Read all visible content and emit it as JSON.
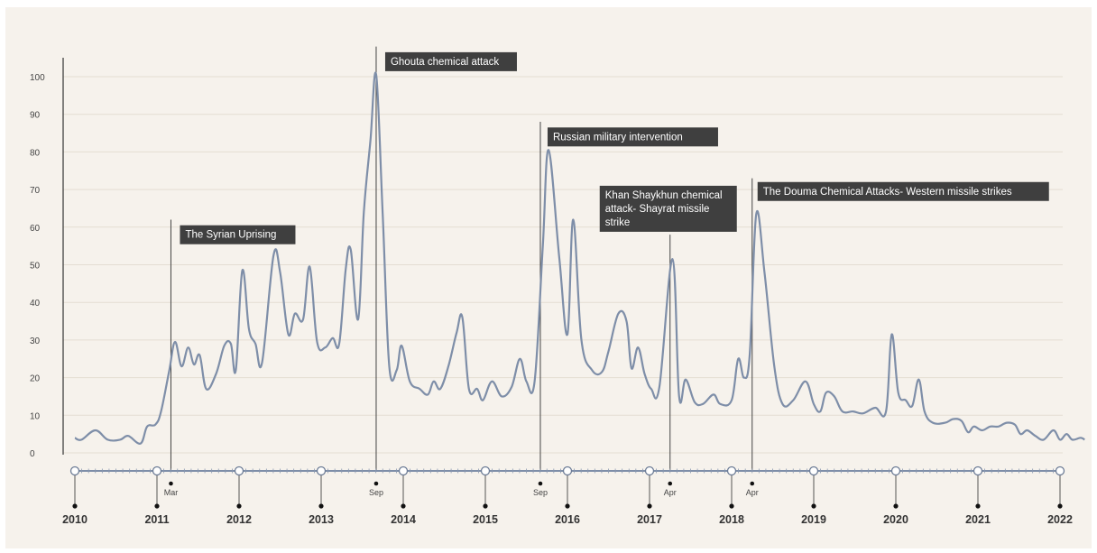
{
  "chart_data": {
    "type": "line",
    "title": "",
    "xlabel": "",
    "ylabel": "",
    "ylim": [
      0,
      100
    ],
    "yticks": [
      "0",
      "10",
      "20",
      "30",
      "40",
      "50",
      "60",
      "70",
      "80",
      "90",
      "100"
    ],
    "grid": true,
    "line_color": "#7e8ea8",
    "x_start_year": 2010,
    "x_end_year": 2022,
    "year_labels": [
      "2010",
      "2011",
      "2012",
      "2013",
      "2014",
      "2015",
      "2016",
      "2017",
      "2018",
      "2019",
      "2020",
      "2021",
      "2022"
    ],
    "series": [
      {
        "points": [
          [
            2010.0,
            4
          ],
          [
            2010.08,
            3.5
          ],
          [
            2010.25,
            6
          ],
          [
            2010.4,
            3.5
          ],
          [
            2010.55,
            3.5
          ],
          [
            2010.65,
            4.5
          ],
          [
            2010.8,
            2.5
          ],
          [
            2010.88,
            7
          ],
          [
            2010.98,
            7.5
          ],
          [
            2011.05,
            11
          ],
          [
            2011.15,
            22
          ],
          [
            2011.22,
            29.5
          ],
          [
            2011.3,
            23
          ],
          [
            2011.38,
            28
          ],
          [
            2011.45,
            23.5
          ],
          [
            2011.52,
            26
          ],
          [
            2011.6,
            17
          ],
          [
            2011.72,
            21
          ],
          [
            2011.82,
            28.5
          ],
          [
            2011.9,
            29
          ],
          [
            2011.96,
            22
          ],
          [
            2012.04,
            48.5
          ],
          [
            2012.12,
            33
          ],
          [
            2012.2,
            29
          ],
          [
            2012.28,
            24
          ],
          [
            2012.42,
            52.5
          ],
          [
            2012.5,
            48
          ],
          [
            2012.6,
            31.5
          ],
          [
            2012.68,
            37
          ],
          [
            2012.78,
            35.5
          ],
          [
            2012.86,
            49.5
          ],
          [
            2012.95,
            29.5
          ],
          [
            2013.05,
            28
          ],
          [
            2013.14,
            30.5
          ],
          [
            2013.22,
            29
          ],
          [
            2013.3,
            49
          ],
          [
            2013.36,
            54
          ],
          [
            2013.45,
            35.5
          ],
          [
            2013.52,
            64
          ],
          [
            2013.6,
            83
          ],
          [
            2013.67,
            100.5
          ],
          [
            2013.75,
            63
          ],
          [
            2013.83,
            23
          ],
          [
            2013.92,
            22
          ],
          [
            2013.98,
            28.5
          ],
          [
            2014.08,
            19
          ],
          [
            2014.2,
            17
          ],
          [
            2014.3,
            15.5
          ],
          [
            2014.37,
            19
          ],
          [
            2014.45,
            17
          ],
          [
            2014.55,
            23
          ],
          [
            2014.65,
            32
          ],
          [
            2014.72,
            36
          ],
          [
            2014.8,
            17
          ],
          [
            2014.9,
            17
          ],
          [
            2014.97,
            14
          ],
          [
            2015.08,
            19
          ],
          [
            2015.2,
            15
          ],
          [
            2015.32,
            17.5
          ],
          [
            2015.42,
            25
          ],
          [
            2015.5,
            19
          ],
          [
            2015.6,
            19
          ],
          [
            2015.7,
            55
          ],
          [
            2015.77,
            80.5
          ],
          [
            2015.9,
            52
          ],
          [
            2016.0,
            31.5
          ],
          [
            2016.07,
            62
          ],
          [
            2016.17,
            30
          ],
          [
            2016.3,
            22
          ],
          [
            2016.42,
            21.5
          ],
          [
            2016.5,
            27
          ],
          [
            2016.62,
            37
          ],
          [
            2016.72,
            35
          ],
          [
            2016.78,
            22.5
          ],
          [
            2016.86,
            28
          ],
          [
            2016.94,
            21
          ],
          [
            2017.02,
            17
          ],
          [
            2017.12,
            17.5
          ],
          [
            2017.28,
            51.5
          ],
          [
            2017.36,
            15
          ],
          [
            2017.44,
            19.5
          ],
          [
            2017.55,
            13.5
          ],
          [
            2017.65,
            13
          ],
          [
            2017.78,
            15.5
          ],
          [
            2017.86,
            13
          ],
          [
            2018.0,
            14
          ],
          [
            2018.08,
            25
          ],
          [
            2018.15,
            20
          ],
          [
            2018.22,
            26
          ],
          [
            2018.3,
            63.5
          ],
          [
            2018.4,
            48
          ],
          [
            2018.52,
            23
          ],
          [
            2018.62,
            13
          ],
          [
            2018.75,
            14
          ],
          [
            2018.9,
            19
          ],
          [
            2019.0,
            13
          ],
          [
            2019.08,
            11
          ],
          [
            2019.15,
            16
          ],
          [
            2019.25,
            15
          ],
          [
            2019.35,
            11
          ],
          [
            2019.48,
            11
          ],
          [
            2019.6,
            10.5
          ],
          [
            2019.75,
            12
          ],
          [
            2019.88,
            11
          ],
          [
            2019.95,
            31.5
          ],
          [
            2020.03,
            16
          ],
          [
            2020.12,
            14
          ],
          [
            2020.2,
            12.5
          ],
          [
            2020.28,
            19.5
          ],
          [
            2020.35,
            11
          ],
          [
            2020.45,
            8
          ],
          [
            2020.6,
            8
          ],
          [
            2020.7,
            9
          ],
          [
            2020.8,
            8.5
          ],
          [
            2020.88,
            5.5
          ],
          [
            2020.95,
            7
          ],
          [
            2021.05,
            6
          ],
          [
            2021.15,
            7
          ],
          [
            2021.25,
            7
          ],
          [
            2021.35,
            8
          ],
          [
            2021.45,
            7.5
          ],
          [
            2021.52,
            5
          ],
          [
            2021.6,
            6
          ],
          [
            2021.7,
            4.5
          ],
          [
            2021.8,
            3.5
          ],
          [
            2021.92,
            6
          ],
          [
            2022.0,
            3.5
          ],
          [
            2022.08,
            5
          ],
          [
            2022.15,
            3.5
          ],
          [
            2022.25,
            4
          ],
          [
            2022.3,
            3.5
          ]
        ]
      }
    ],
    "annotations": [
      {
        "x": 2011.17,
        "label_lines": [
          "The Syrian Uprising"
        ],
        "month": "Mar",
        "bar_top": 62,
        "box_top": 60.5,
        "box_left_offset": 10
      },
      {
        "x": 2013.67,
        "label_lines": [
          "Ghouta chemical attack"
        ],
        "month": "Sep",
        "bar_top": 108,
        "box_top": 106.5,
        "box_left_offset": 10
      },
      {
        "x": 2015.67,
        "label_lines": [
          "Russian military intervention"
        ],
        "month": "Sep",
        "bar_top": 88,
        "box_top": 86.5,
        "box_left_offset": 8
      },
      {
        "x": 2017.25,
        "label_lines": [
          "Khan Shaykhun chemical",
          "attack- Shayrat missile",
          "strike"
        ],
        "month": "Apr",
        "bar_top": 58,
        "box_top": 71,
        "box_left_offset": -78
      },
      {
        "x": 2018.25,
        "label_lines": [
          "The Douma Chemical Attacks- Western missile strikes"
        ],
        "month": "Apr",
        "bar_top": 73,
        "box_top": 72,
        "box_left_offset": 6
      }
    ]
  }
}
